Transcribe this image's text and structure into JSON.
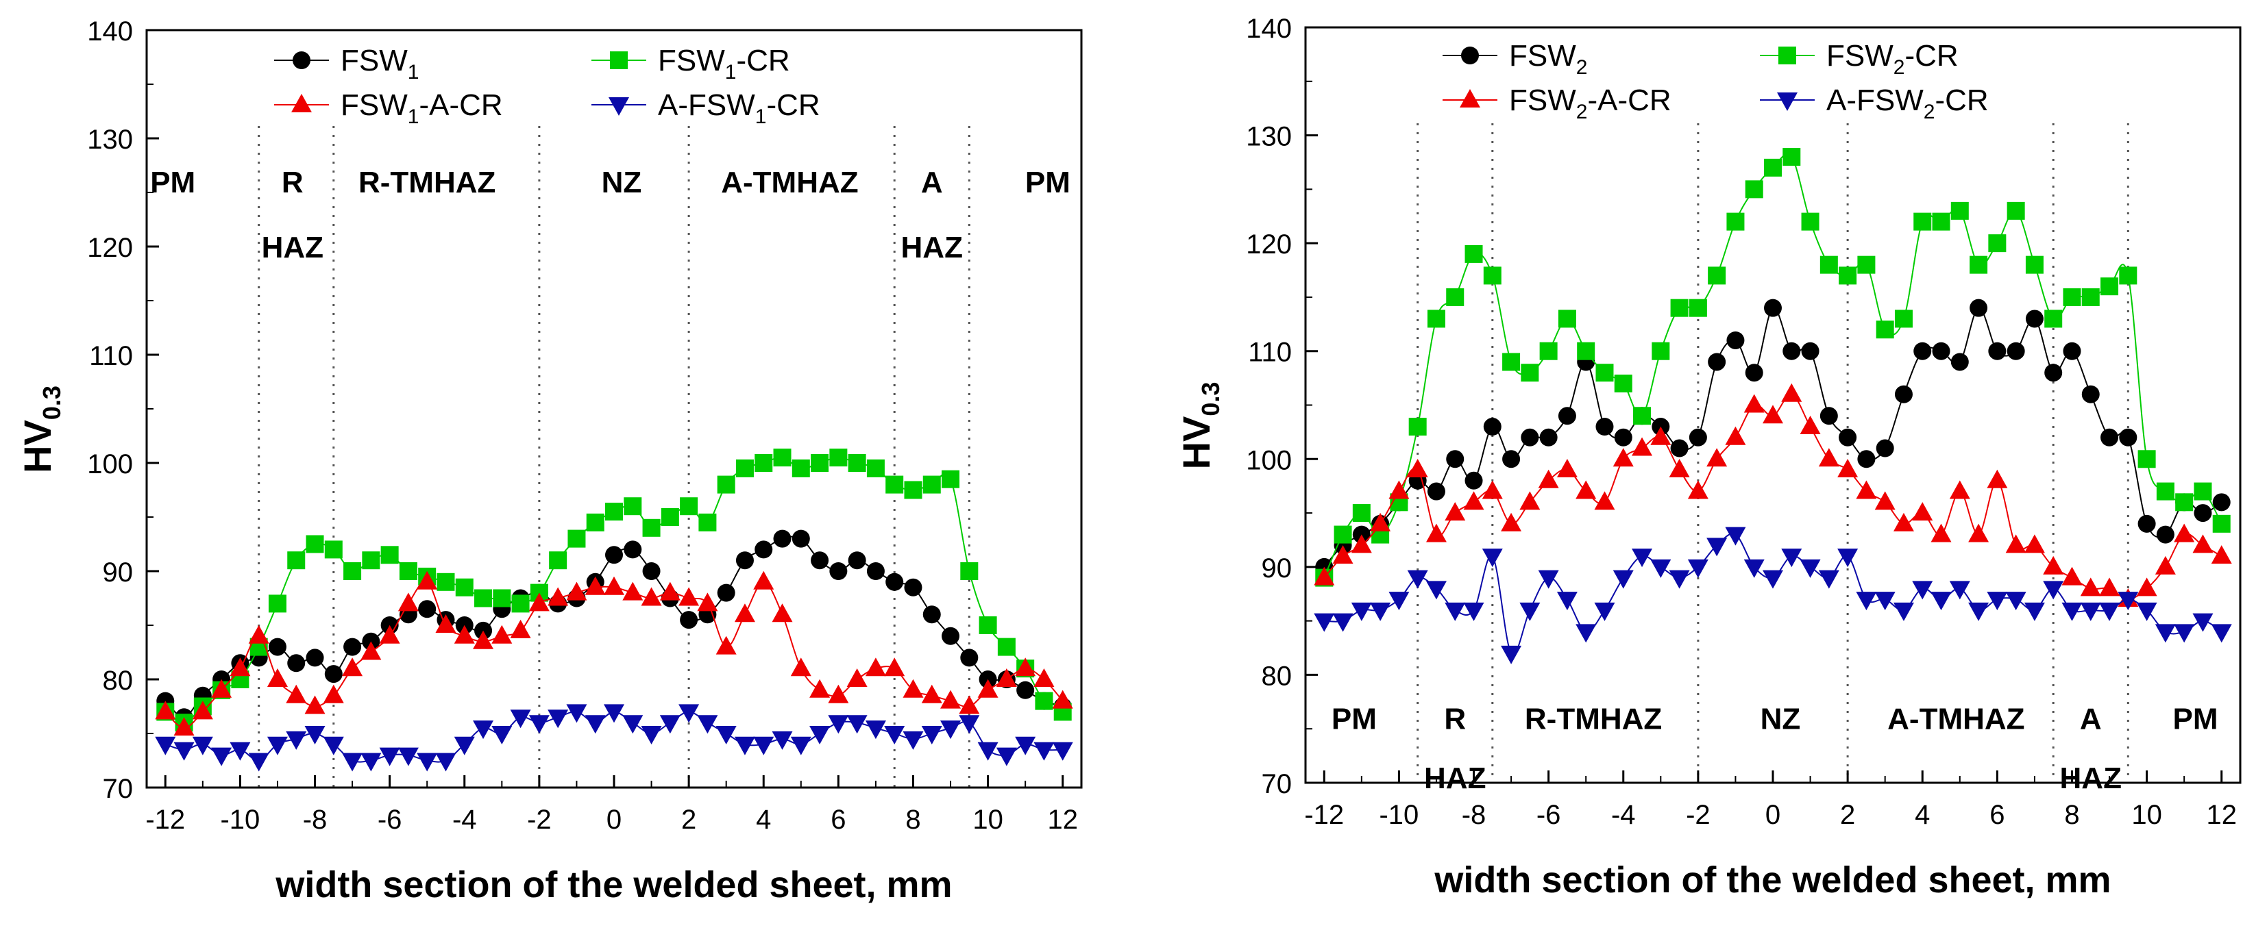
{
  "chart_data": [
    {
      "type": "line",
      "xlabel": "width section of the welded sheet, mm",
      "ylabel": {
        "main": "HV",
        "sub": "0.3"
      },
      "xlim": [
        -12.5,
        12.5
      ],
      "ylim": [
        70,
        140
      ],
      "xticks": [
        "-12",
        "-10",
        "-8",
        "-6",
        "-4",
        "-2",
        "0",
        "2",
        "4",
        "6",
        "8",
        "10",
        "12"
      ],
      "yticks": [
        "70",
        "80",
        "90",
        "100",
        "110",
        "120",
        "130",
        "140"
      ],
      "grid": false,
      "legend_position": "top",
      "zone_boundaries": [
        -9.5,
        -7.5,
        -2,
        2,
        7.5,
        9.5
      ],
      "zones": [
        {
          "lines": [
            "PM"
          ],
          "x": -11.8
        },
        {
          "lines": [
            "R",
            "HAZ"
          ],
          "x": -8.6
        },
        {
          "lines": [
            "R-TMHAZ"
          ],
          "x": -5.0
        },
        {
          "lines": [
            "NZ"
          ],
          "x": 0.2
        },
        {
          "lines": [
            "A-TMHAZ"
          ],
          "x": 4.7
        },
        {
          "lines": [
            "A",
            "HAZ"
          ],
          "x": 8.5
        },
        {
          "lines": [
            "PM"
          ],
          "x": 11.6
        }
      ],
      "zone_label_y": [
        126,
        120
      ],
      "series": [
        {
          "name": "FSW",
          "name_sub": "1",
          "name_suffix": "",
          "color": "#000000",
          "marker": "circle",
          "x": [
            -12,
            -11.5,
            -11,
            -10.5,
            -10,
            -9.5,
            -9,
            -8.5,
            -8,
            -7.5,
            -7,
            -6.5,
            -6,
            -5.5,
            -5,
            -4.5,
            -4,
            -3.5,
            -3,
            -2.5,
            -2,
            -1.5,
            -1,
            -0.5,
            0,
            0.5,
            1,
            1.5,
            2,
            2.5,
            3,
            3.5,
            4,
            4.5,
            5,
            5.5,
            6,
            6.5,
            7,
            7.5,
            8,
            8.5,
            9,
            9.5,
            10,
            10.5,
            11,
            11.5,
            12
          ],
          "values": [
            78,
            76.5,
            78.5,
            80,
            81.5,
            82,
            83,
            81.5,
            82,
            80.5,
            83,
            83.5,
            85,
            86,
            86.5,
            85.5,
            85,
            84.5,
            86.5,
            87.5,
            88,
            87,
            87.5,
            89,
            91.5,
            92,
            90,
            87.5,
            85.5,
            86,
            88,
            91,
            92,
            93,
            93,
            91,
            90,
            91,
            90,
            89,
            88.5,
            86,
            84,
            82,
            80,
            80,
            79,
            78,
            77.5
          ]
        },
        {
          "name": "FSW",
          "name_sub": "1",
          "name_suffix": "-CR",
          "color": "#00cc00",
          "marker": "square",
          "x": [
            -12,
            -11.5,
            -11,
            -10.5,
            -10,
            -9.5,
            -9,
            -8.5,
            -8,
            -7.5,
            -7,
            -6.5,
            -6,
            -5.5,
            -5,
            -4.5,
            -4,
            -3.5,
            -3,
            -2.5,
            -2,
            -1.5,
            -1,
            -0.5,
            0,
            0.5,
            1,
            1.5,
            2,
            2.5,
            3,
            3.5,
            4,
            4.5,
            5,
            5.5,
            6,
            6.5,
            7,
            7.5,
            8,
            8.5,
            9,
            9.5,
            10,
            10.5,
            11,
            11.5,
            12
          ],
          "values": [
            77,
            76,
            77.5,
            79,
            80,
            83,
            87,
            91,
            92.5,
            92,
            90,
            91,
            91.5,
            90,
            89.5,
            89,
            88.5,
            87.5,
            87.5,
            87,
            88,
            91,
            93,
            94.5,
            95.5,
            96,
            94,
            95,
            96,
            94.5,
            98,
            99.5,
            100,
            100.5,
            99.5,
            100,
            100.5,
            100,
            99.5,
            98,
            97.5,
            98,
            98.5,
            90,
            85,
            83,
            81,
            78,
            77
          ]
        },
        {
          "name": "FSW",
          "name_sub": "1",
          "name_suffix": "-A-CR",
          "color": "#ee0000",
          "marker": "triangle-up",
          "x": [
            -12,
            -11.5,
            -11,
            -10.5,
            -10,
            -9.5,
            -9,
            -8.5,
            -8,
            -7.5,
            -7,
            -6.5,
            -6,
            -5.5,
            -5,
            -4.5,
            -4,
            -3.5,
            -3,
            -2.5,
            -2,
            -1.5,
            -1,
            -0.5,
            0,
            0.5,
            1,
            1.5,
            2,
            2.5,
            3,
            3.5,
            4,
            4.5,
            5,
            5.5,
            6,
            6.5,
            7,
            7.5,
            8,
            8.5,
            9,
            9.5,
            10,
            10.5,
            11,
            11.5,
            12
          ],
          "values": [
            77,
            75.5,
            77,
            79,
            81,
            84,
            80,
            78.5,
            77.5,
            78.5,
            81,
            82.5,
            84,
            87,
            89,
            85,
            84,
            83.5,
            84,
            84.5,
            87,
            87.5,
            88,
            88.5,
            88.5,
            88,
            87.5,
            88,
            87.5,
            87,
            83,
            86,
            89,
            86,
            81,
            79,
            78.5,
            80,
            81,
            81,
            79,
            78.5,
            78,
            77.5,
            79,
            80,
            81,
            80,
            78
          ]
        },
        {
          "name": "A-FSW",
          "name_sub": "1",
          "name_suffix": "-CR",
          "color": "#0a0aa8",
          "marker": "triangle-down",
          "x": [
            -12,
            -11.5,
            -11,
            -10.5,
            -10,
            -9.5,
            -9,
            -8.5,
            -8,
            -7.5,
            -7,
            -6.5,
            -6,
            -5.5,
            -5,
            -4.5,
            -4,
            -3.5,
            -3,
            -2.5,
            -2,
            -1.5,
            -1,
            -0.5,
            0,
            0.5,
            1,
            1.5,
            2,
            2.5,
            3,
            3.5,
            4,
            4.5,
            5,
            5.5,
            6,
            6.5,
            7,
            7.5,
            8,
            8.5,
            9,
            9.5,
            10,
            10.5,
            11,
            11.5,
            12
          ],
          "values": [
            74,
            73.5,
            74,
            73,
            73.5,
            72.5,
            74,
            74.5,
            75,
            74,
            72.5,
            72.5,
            73,
            73,
            72.5,
            72.5,
            74,
            75.5,
            75,
            76.5,
            76,
            76.5,
            77,
            76,
            77,
            76,
            75,
            76,
            77,
            76,
            75,
            74,
            74,
            74.5,
            74,
            75,
            76,
            76,
            75.5,
            75,
            74.5,
            75,
            75.5,
            76,
            73.5,
            73,
            74,
            73.5,
            73.5
          ]
        }
      ]
    },
    {
      "type": "line",
      "xlabel": "width section of the welded sheet, mm",
      "ylabel": {
        "main": "HV",
        "sub": "0.3"
      },
      "xlim": [
        -12.5,
        12.5
      ],
      "ylim": [
        70,
        140
      ],
      "xticks": [
        "-12",
        "-10",
        "-8",
        "-6",
        "-4",
        "-2",
        "0",
        "2",
        "4",
        "6",
        "8",
        "10",
        "12"
      ],
      "yticks": [
        "70",
        "80",
        "90",
        "100",
        "110",
        "120",
        "130",
        "140"
      ],
      "grid": false,
      "legend_position": "top",
      "zone_boundaries": [
        -9.5,
        -7.5,
        -2,
        2,
        7.5,
        9.5
      ],
      "zones": [
        {
          "lines": [
            "PM"
          ],
          "x": -11.2
        },
        {
          "lines": [
            "R",
            "HAZ"
          ],
          "x": -8.5
        },
        {
          "lines": [
            "R-TMHAZ"
          ],
          "x": -4.8
        },
        {
          "lines": [
            "NZ"
          ],
          "x": 0.2
        },
        {
          "lines": [
            "A-TMHAZ"
          ],
          "x": 4.9
        },
        {
          "lines": [
            "A",
            "HAZ"
          ],
          "x": 8.5
        },
        {
          "lines": [
            "PM"
          ],
          "x": 11.3
        }
      ],
      "zone_label_y": [
        76,
        70.5
      ],
      "series": [
        {
          "name": "FSW",
          "name_sub": "2",
          "name_suffix": "",
          "color": "#000000",
          "marker": "circle",
          "x": [
            -12,
            -11.5,
            -11,
            -10.5,
            -10,
            -9.5,
            -9,
            -8.5,
            -8,
            -7.5,
            -7,
            -6.5,
            -6,
            -5.5,
            -5,
            -4.5,
            -4,
            -3.5,
            -3,
            -2.5,
            -2,
            -1.5,
            -1,
            -0.5,
            0,
            0.5,
            1,
            1.5,
            2,
            2.5,
            3,
            3.5,
            4,
            4.5,
            5,
            5.5,
            6,
            6.5,
            7,
            7.5,
            8,
            8.5,
            9,
            9.5,
            10,
            10.5,
            11,
            11.5,
            12
          ],
          "values": [
            90,
            92,
            93,
            94,
            96,
            98,
            97,
            100,
            98,
            103,
            100,
            102,
            102,
            104,
            109,
            103,
            102,
            104,
            103,
            101,
            102,
            109,
            111,
            108,
            114,
            110,
            110,
            104,
            102,
            100,
            101,
            106,
            110,
            110,
            109,
            114,
            110,
            110,
            113,
            108,
            110,
            106,
            102,
            102,
            94,
            93,
            96,
            95,
            96
          ]
        },
        {
          "name": "FSW",
          "name_sub": "2",
          "name_suffix": "-CR",
          "color": "#00cc00",
          "marker": "square",
          "x": [
            -12,
            -11.5,
            -11,
            -10.5,
            -10,
            -9.5,
            -9,
            -8.5,
            -8,
            -7.5,
            -7,
            -6.5,
            -6,
            -5.5,
            -5,
            -4.5,
            -4,
            -3.5,
            -3,
            -2.5,
            -2,
            -1.5,
            -1,
            -0.5,
            0,
            0.5,
            1,
            1.5,
            2,
            2.5,
            3,
            3.5,
            4,
            4.5,
            5,
            5.5,
            6,
            6.5,
            7,
            7.5,
            8,
            8.5,
            9,
            9.5,
            10,
            10.5,
            11,
            11.5,
            12
          ],
          "values": [
            89,
            93,
            95,
            93,
            96,
            103,
            113,
            115,
            119,
            117,
            109,
            108,
            110,
            113,
            110,
            108,
            107,
            104,
            110,
            114,
            114,
            117,
            122,
            125,
            127,
            128,
            122,
            118,
            117,
            118,
            112,
            113,
            122,
            122,
            123,
            118,
            120,
            123,
            118,
            113,
            115,
            115,
            116,
            117,
            100,
            97,
            96,
            97,
            94
          ]
        },
        {
          "name": "FSW",
          "name_sub": "2",
          "name_suffix": "-A-CR",
          "color": "#ee0000",
          "marker": "triangle-up",
          "x": [
            -12,
            -11.5,
            -11,
            -10.5,
            -10,
            -9.5,
            -9,
            -8.5,
            -8,
            -7.5,
            -7,
            -6.5,
            -6,
            -5.5,
            -5,
            -4.5,
            -4,
            -3.5,
            -3,
            -2.5,
            -2,
            -1.5,
            -1,
            -0.5,
            0,
            0.5,
            1,
            1.5,
            2,
            2.5,
            3,
            3.5,
            4,
            4.5,
            5,
            5.5,
            6,
            6.5,
            7,
            7.5,
            8,
            8.5,
            9,
            9.5,
            10,
            10.5,
            11,
            11.5,
            12
          ],
          "values": [
            89,
            91,
            92,
            94,
            97,
            99,
            93,
            95,
            96,
            97,
            94,
            96,
            98,
            99,
            97,
            96,
            100,
            101,
            102,
            99,
            97,
            100,
            102,
            105,
            104,
            106,
            103,
            100,
            99,
            97,
            96,
            94,
            95,
            93,
            97,
            93,
            98,
            92,
            92,
            90,
            89,
            88,
            88,
            87,
            88,
            90,
            93,
            92,
            91
          ]
        },
        {
          "name": "A-FSW",
          "name_sub": "2",
          "name_suffix": "-CR",
          "color": "#0a0aa8",
          "marker": "triangle-down",
          "x": [
            -12,
            -11.5,
            -11,
            -10.5,
            -10,
            -9.5,
            -9,
            -8.5,
            -8,
            -7.5,
            -7,
            -6.5,
            -6,
            -5.5,
            -5,
            -4.5,
            -4,
            -3.5,
            -3,
            -2.5,
            -2,
            -1.5,
            -1,
            -0.5,
            0,
            0.5,
            1,
            1.5,
            2,
            2.5,
            3,
            3.5,
            4,
            4.5,
            5,
            5.5,
            6,
            6.5,
            7,
            7.5,
            8,
            8.5,
            9,
            9.5,
            10,
            10.5,
            11,
            11.5,
            12
          ],
          "values": [
            85,
            85,
            86,
            86,
            87,
            89,
            88,
            86,
            86,
            91,
            82,
            86,
            89,
            87,
            84,
            86,
            89,
            91,
            90,
            89,
            90,
            92,
            93,
            90,
            89,
            91,
            90,
            89,
            91,
            87,
            87,
            86,
            88,
            87,
            88,
            86,
            87,
            87,
            86,
            88,
            86,
            86,
            86,
            87,
            86,
            84,
            84,
            85,
            84
          ]
        }
      ]
    }
  ]
}
